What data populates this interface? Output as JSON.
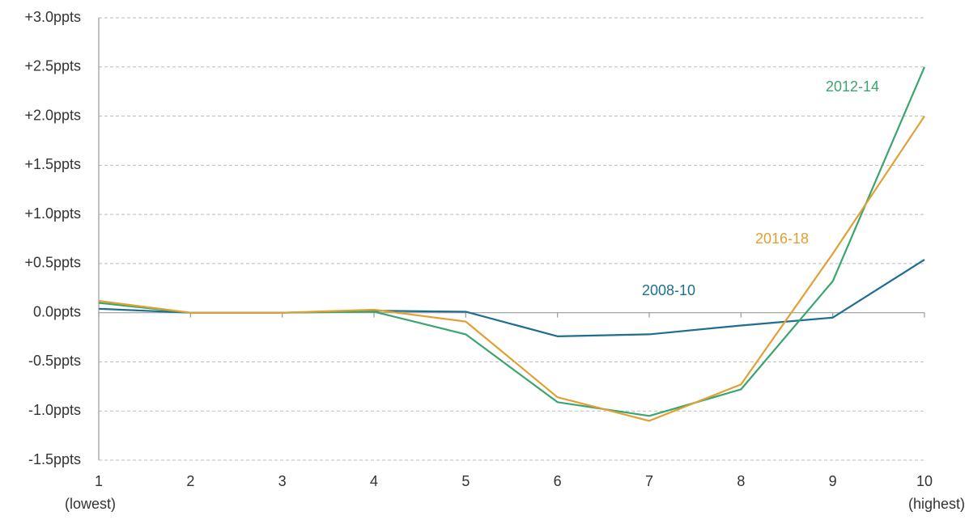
{
  "chart_data": {
    "type": "line",
    "categories": [
      "1",
      "2",
      "3",
      "4",
      "5",
      "6",
      "7",
      "8",
      "9",
      "10"
    ],
    "x_end_labels": [
      "(lowest)",
      "(highest)"
    ],
    "series": [
      {
        "name": "2008-10",
        "color": "#1d6f8f",
        "values": [
          0.04,
          0.0,
          0.0,
          0.02,
          0.01,
          -0.24,
          -0.22,
          -0.13,
          -0.05,
          0.54
        ]
      },
      {
        "name": "2012-14",
        "color": "#3aa56e",
        "values": [
          0.1,
          0.0,
          0.0,
          0.01,
          -0.22,
          -0.91,
          -1.05,
          -0.78,
          0.32,
          2.5
        ]
      },
      {
        "name": "2016-18",
        "color": "#e0a034",
        "values": [
          0.12,
          0.0,
          0.0,
          0.03,
          -0.09,
          -0.86,
          -1.1,
          -0.73,
          0.6,
          2.0
        ]
      }
    ],
    "ylim": [
      -1.5,
      3.0
    ],
    "yticks": [
      {
        "value": -1.5,
        "label": "-1.5ppts"
      },
      {
        "value": -1.0,
        "label": "-1.0ppts"
      },
      {
        "value": -0.5,
        "label": "-0.5ppts"
      },
      {
        "value": 0,
        "label": "0.0ppts"
      },
      {
        "value": 0.5,
        "label": "+0.5ppts"
      },
      {
        "value": 1.0,
        "label": "+1.0ppts"
      },
      {
        "value": 1.5,
        "label": "+1.5ppts"
      },
      {
        "value": 2.0,
        "label": "+2.0ppts"
      },
      {
        "value": 2.5,
        "label": "+2.5ppts"
      },
      {
        "value": 3.0,
        "label": "+3.0ppts"
      }
    ],
    "grid": true
  }
}
